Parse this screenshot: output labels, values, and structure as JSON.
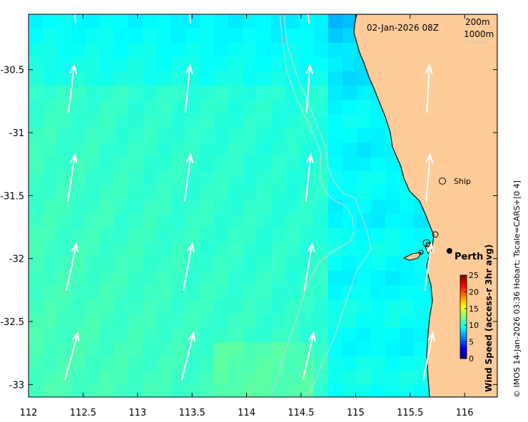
{
  "map": {
    "timestamp": "02-Jan-2026 08Z",
    "contour_labels": [
      "200m",
      "1000m"
    ],
    "credit": "© IMOS 14-Jan-2026 03:36 Hobart; Tscale=CARS+[0 4]",
    "x_axis": {
      "range": [
        112,
        116.3
      ],
      "ticks": [
        {
          "value": 112,
          "label": "112"
        },
        {
          "value": 112.5,
          "label": "112.5"
        },
        {
          "value": 113,
          "label": "113"
        },
        {
          "value": 113.5,
          "label": "113.5"
        },
        {
          "value": 114,
          "label": "114"
        },
        {
          "value": 114.5,
          "label": "114.5"
        },
        {
          "value": 115,
          "label": "115"
        },
        {
          "value": 115.5,
          "label": "115.5"
        },
        {
          "value": 116,
          "label": "116"
        }
      ]
    },
    "y_axis": {
      "range": [
        -33.1,
        -30.06
      ],
      "ticks": [
        {
          "value": -30.5,
          "label": "-30.5"
        },
        {
          "value": -31,
          "label": "-31"
        },
        {
          "value": -31.5,
          "label": "-31.5"
        },
        {
          "value": -32,
          "label": "-32"
        },
        {
          "value": -32.5,
          "label": "-32.5"
        },
        {
          "value": -33,
          "label": "-33"
        }
      ]
    },
    "places": [
      {
        "name": "Ship",
        "lon": 115.83,
        "lat": -31.4,
        "marker": "open-circle"
      },
      {
        "name": "Perth",
        "lon": 115.86,
        "lat": -31.95,
        "marker": "filled-circle"
      }
    ],
    "colorbar": {
      "label": "Wind Speed (access-r 3hr avg)",
      "min": 0,
      "max": 25,
      "ticks": [
        "0",
        "5",
        "10",
        "15",
        "20",
        "25"
      ],
      "colormap": "jet"
    },
    "colors": {
      "land": "#FFCC99",
      "contour": "#c8c8c8",
      "arrow": "#ffffff",
      "coast": "#000000"
    }
  }
}
